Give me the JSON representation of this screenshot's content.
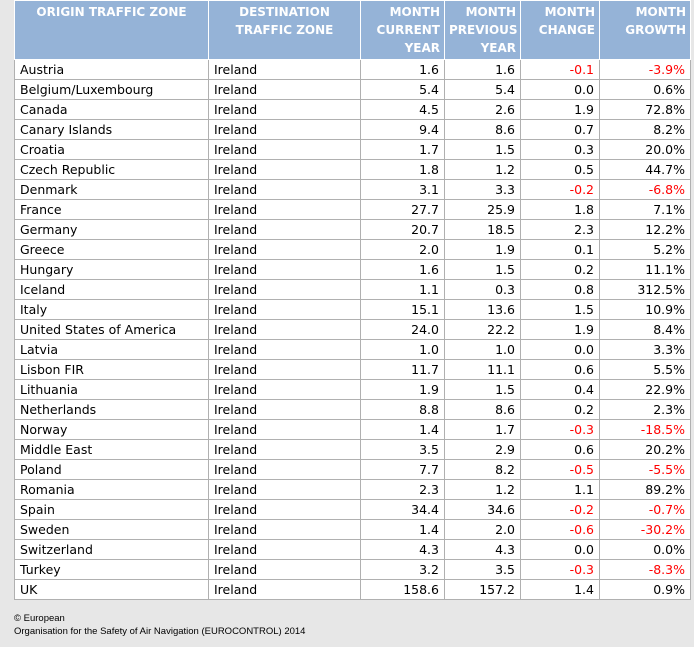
{
  "table": {
    "headers": [
      {
        "label": "ORIGIN TRAFFIC ZONE",
        "align": "left"
      },
      {
        "label": "DESTINATION TRAFFIC ZONE",
        "align": "left"
      },
      {
        "label": "MONTH CURRENT YEAR",
        "align": "right"
      },
      {
        "label": "MONTH PREVIOUS YEAR",
        "align": "right"
      },
      {
        "label": "MONTH CHANGE",
        "align": "right"
      },
      {
        "label": "MONTH GROWTH",
        "align": "right"
      }
    ],
    "rows": [
      [
        "Austria",
        "Ireland",
        "1.6",
        "1.6",
        "-0.1",
        "-3.9%"
      ],
      [
        "Belgium/Luxembourg",
        "Ireland",
        "5.4",
        "5.4",
        "0.0",
        "0.6%"
      ],
      [
        "Canada",
        "Ireland",
        "4.5",
        "2.6",
        "1.9",
        "72.8%"
      ],
      [
        "Canary Islands",
        "Ireland",
        "9.4",
        "8.6",
        "0.7",
        "8.2%"
      ],
      [
        "Croatia",
        "Ireland",
        "1.7",
        "1.5",
        "0.3",
        "20.0%"
      ],
      [
        "Czech Republic",
        "Ireland",
        "1.8",
        "1.2",
        "0.5",
        "44.7%"
      ],
      [
        "Denmark",
        "Ireland",
        "3.1",
        "3.3",
        "-0.2",
        "-6.8%"
      ],
      [
        "France",
        "Ireland",
        "27.7",
        "25.9",
        "1.8",
        "7.1%"
      ],
      [
        "Germany",
        "Ireland",
        "20.7",
        "18.5",
        "2.3",
        "12.2%"
      ],
      [
        "Greece",
        "Ireland",
        "2.0",
        "1.9",
        "0.1",
        "5.2%"
      ],
      [
        "Hungary",
        "Ireland",
        "1.6",
        "1.5",
        "0.2",
        "11.1%"
      ],
      [
        "Iceland",
        "Ireland",
        "1.1",
        "0.3",
        "0.8",
        "312.5%"
      ],
      [
        "Italy",
        "Ireland",
        "15.1",
        "13.6",
        "1.5",
        "10.9%"
      ],
      [
        "United States of America",
        "Ireland",
        "24.0",
        "22.2",
        "1.9",
        "8.4%"
      ],
      [
        "Latvia",
        "Ireland",
        "1.0",
        "1.0",
        "0.0",
        "3.3%"
      ],
      [
        "Lisbon FIR",
        "Ireland",
        "11.7",
        "11.1",
        "0.6",
        "5.5%"
      ],
      [
        "Lithuania",
        "Ireland",
        "1.9",
        "1.5",
        "0.4",
        "22.9%"
      ],
      [
        "Netherlands",
        "Ireland",
        "8.8",
        "8.6",
        "0.2",
        "2.3%"
      ],
      [
        "Norway",
        "Ireland",
        "1.4",
        "1.7",
        "-0.3",
        "-18.5%"
      ],
      [
        "Middle East",
        "Ireland",
        "3.5",
        "2.9",
        "0.6",
        "20.2%"
      ],
      [
        "Poland",
        "Ireland",
        "7.7",
        "8.2",
        "-0.5",
        "-5.5%"
      ],
      [
        "Romania",
        "Ireland",
        "2.3",
        "1.2",
        "1.1",
        "89.2%"
      ],
      [
        "Spain",
        "Ireland",
        "34.4",
        "34.6",
        "-0.2",
        "-0.7%"
      ],
      [
        "Sweden",
        "Ireland",
        "1.4",
        "2.0",
        "-0.6",
        "-30.2%"
      ],
      [
        "Switzerland",
        "Ireland",
        "4.3",
        "4.3",
        "0.0",
        "0.0%"
      ],
      [
        "Turkey",
        "Ireland",
        "3.2",
        "3.5",
        "-0.3",
        "-8.3%"
      ],
      [
        "UK",
        "Ireland",
        "158.6",
        "157.2",
        "1.4",
        "0.9%"
      ]
    ]
  },
  "footer": {
    "line1": "© European",
    "line2": "Organisation for the Safety of Air Navigation (EUROCONTROL) 2014"
  },
  "colors": {
    "header_bg": "#95b3d7",
    "header_text": "#ffffff",
    "negative": "#ff0000",
    "page_bg": "#e7e7e7"
  }
}
